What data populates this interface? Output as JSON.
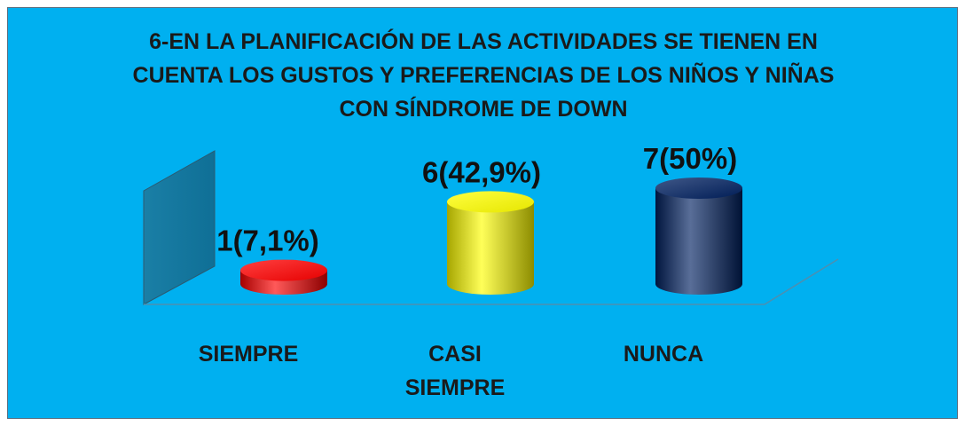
{
  "chart_data": {
    "type": "bar3d",
    "title": "6-EN LA PLANIFICACIÓN DE LAS ACTIVIDADES SE TIENEN EN CUENTA LOS GUSTOS Y PREFERENCIAS DE LOS NIÑOS Y NIÑAS CON SÍNDROME DE DOWN",
    "categories": [
      "SIEMPRE",
      "CASI SIEMPRE",
      "NUNCA"
    ],
    "values": [
      1,
      6,
      7
    ],
    "value_labels": [
      "1(7,1%)",
      "6(42,9%)",
      "7(50%)"
    ],
    "colors": [
      "#ff0000",
      "#ffff00",
      "#002060"
    ]
  }
}
